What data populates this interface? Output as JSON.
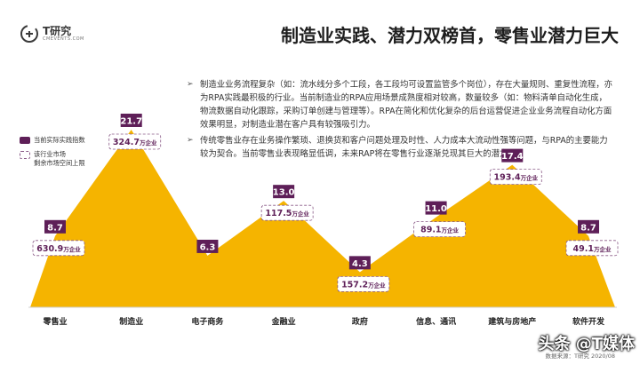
{
  "header": {
    "logo_text": "T研究",
    "logo_sub": "CMEVENTS.COM",
    "title": "制造业实践、潜力双榜首，零售业潜力巨大"
  },
  "bullets": [
    "制造业业务流程复杂（如：流水线分多个工段，各工段均可设置监管多个岗位），存在大量规则、重复性流程，亦为RPA实践最积极的行业。当前制造业的RPA应用场景成熟度相对较高，数量较多（如：物料清单自动化生成，物流数据自动化跟踪，采购订单创建与管理等）。RPA在简化和优化复杂的后台运营促进企业业务流程自动化方面效果明显，对制造业潜在客户具有较强吸引力。",
    "传统零售业存在业务操作繁琐、退换货和客户问题处理及时性、人力成本大流动性强等问题，与RPA的主要能力较为契合。当前零售业表现略显低调，未来RAP将在零售行业逐渐兑现其巨大的潜力。"
  ],
  "bullet_mark": "➢",
  "legend": {
    "index_label": "当前实际实践指数",
    "space_label": "该行业市场\n剩余市场空间上限"
  },
  "colors": {
    "area": "#f5b400",
    "index_badge": "#5e1f58",
    "space_text": "#5e1f58",
    "dashed_border": "#8a5b87",
    "watermark_text": "#ffffff"
  },
  "unit": "万企业",
  "chart_data": {
    "type": "area",
    "categories": [
      "零售业",
      "制造业",
      "电子商务",
      "金融业",
      "政府",
      "信息、通讯",
      "建筑与房地产",
      "软件开发"
    ],
    "series": [
      {
        "name": "当前实际实践指数",
        "values": [
          8.7,
          21.7,
          6.3,
          13.0,
          4.3,
          11.0,
          17.4,
          8.7
        ]
      },
      {
        "name": "该行业市场剩余市场空间上限",
        "values": [
          630.9,
          324.7,
          null,
          117.5,
          157.2,
          89.1,
          193.4,
          49.1
        ]
      }
    ],
    "index_labels": [
      "8.7",
      "21.7",
      "6.3",
      "13.0",
      "4.3",
      "11.0",
      "17.4",
      "8.7"
    ],
    "space_labels": [
      "630.9",
      "324.7",
      "",
      "117.5",
      "157.2",
      "89.1",
      "193.4",
      "49.1"
    ],
    "ylim": [
      0,
      23
    ]
  },
  "footer": {
    "source": "数据来源：T研究 2020/08"
  },
  "watermark": "头条 @T媒体"
}
